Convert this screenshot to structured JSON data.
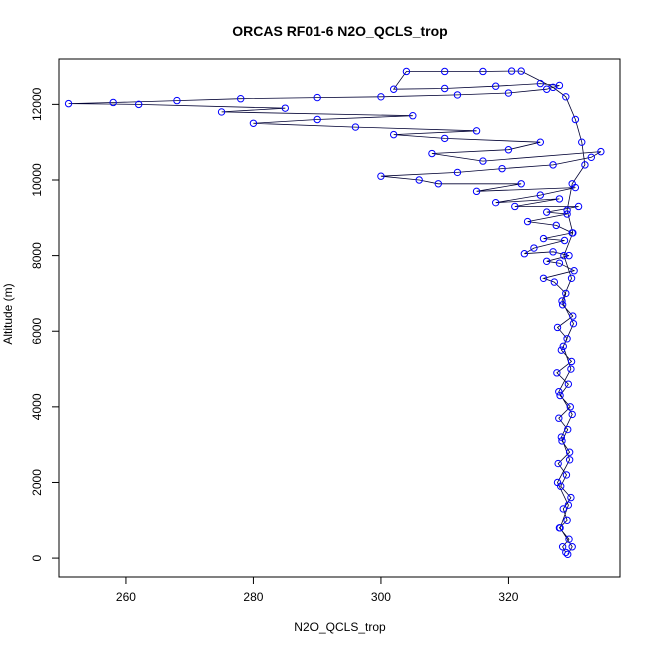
{
  "chart_data": {
    "type": "scatter",
    "title": "ORCAS RF01-6 N2O_QCLS_trop",
    "xlabel": "N2O_QCLS_trop",
    "ylabel": "Altitude (m)",
    "xlim": [
      249.5,
      337.5
    ],
    "ylim": [
      -500,
      13200
    ],
    "x_ticks": [
      260,
      280,
      300,
      320
    ],
    "x_tick_labels": [
      "260",
      "280",
      "300",
      "320"
    ],
    "y_ticks": [
      0,
      2000,
      4000,
      6000,
      8000,
      10000,
      12000
    ],
    "y_tick_labels": [
      "0",
      "2000",
      "4000",
      "6000",
      "8000",
      "10000",
      "12000"
    ],
    "marker": "open-circle",
    "connected": true,
    "color": "#0000ff",
    "series": [
      {
        "points": [
          [
            329,
            150
          ],
          [
            328.5,
            300
          ],
          [
            329.5,
            500
          ],
          [
            328,
            800
          ],
          [
            329.2,
            1000
          ],
          [
            328.6,
            1300
          ],
          [
            329.8,
            1600
          ],
          [
            328.2,
            1900
          ],
          [
            329.1,
            2200
          ],
          [
            327.8,
            2500
          ],
          [
            329.6,
            2800
          ],
          [
            328.4,
            3100
          ],
          [
            329.3,
            3400
          ],
          [
            327.9,
            3700
          ],
          [
            329.7,
            4000
          ],
          [
            328.1,
            4300
          ],
          [
            329.4,
            4600
          ],
          [
            327.6,
            4900
          ],
          [
            329.9,
            5200
          ],
          [
            328.3,
            5500
          ],
          [
            329.2,
            5800
          ],
          [
            327.7,
            6100
          ],
          [
            330.1,
            6400
          ],
          [
            328.5,
            6700
          ],
          [
            329.0,
            7000
          ],
          [
            327.2,
            7300
          ],
          [
            325.5,
            7400
          ],
          [
            330.3,
            7600
          ],
          [
            328.0,
            7800
          ],
          [
            326.0,
            7850
          ],
          [
            329.5,
            8000
          ],
          [
            327.0,
            8100
          ],
          [
            322.5,
            8050
          ],
          [
            324.0,
            8200
          ],
          [
            328.8,
            8400
          ],
          [
            325.5,
            8450
          ],
          [
            330.0,
            8600
          ],
          [
            327.5,
            8800
          ],
          [
            323.0,
            8900
          ],
          [
            329.2,
            9100
          ],
          [
            326.0,
            9150
          ],
          [
            331.0,
            9300
          ],
          [
            321.0,
            9300
          ],
          [
            328.0,
            9500
          ],
          [
            318.0,
            9400
          ],
          [
            325.0,
            9600
          ],
          [
            330.5,
            9800
          ],
          [
            315.0,
            9700
          ],
          [
            322.0,
            9900
          ],
          [
            309.0,
            9900
          ],
          [
            306.0,
            10000
          ],
          [
            300.0,
            10100
          ],
          [
            312.0,
            10200
          ],
          [
            319.0,
            10300
          ],
          [
            327.0,
            10400
          ],
          [
            333.0,
            10600
          ],
          [
            334.5,
            10750
          ],
          [
            316.0,
            10500
          ],
          [
            308.0,
            10700
          ],
          [
            320.0,
            10800
          ],
          [
            325.0,
            11000
          ],
          [
            310.0,
            11100
          ],
          [
            302.0,
            11200
          ],
          [
            315.0,
            11300
          ],
          [
            296.0,
            11400
          ],
          [
            280.0,
            11500
          ],
          [
            290.0,
            11600
          ],
          [
            305.0,
            11700
          ],
          [
            275.0,
            11800
          ],
          [
            285.0,
            11900
          ],
          [
            262.0,
            12000
          ],
          [
            251.0,
            12020
          ],
          [
            258.0,
            12050
          ],
          [
            268.0,
            12100
          ],
          [
            278.0,
            12150
          ],
          [
            290.0,
            12180
          ],
          [
            300.0,
            12200
          ],
          [
            312.0,
            12250
          ],
          [
            320.0,
            12300
          ],
          [
            326.0,
            12400
          ],
          [
            328.0,
            12500
          ],
          [
            325.0,
            12550
          ],
          [
            318.0,
            12480
          ],
          [
            310.0,
            12420
          ],
          [
            302.0,
            12400
          ],
          [
            304.0,
            12870
          ],
          [
            310.0,
            12870
          ],
          [
            316.0,
            12870
          ],
          [
            320.5,
            12880
          ],
          [
            322.0,
            12880
          ],
          [
            327.0,
            12450
          ],
          [
            329.0,
            12200
          ],
          [
            330.5,
            11600
          ],
          [
            331.5,
            11000
          ],
          [
            332.0,
            10400
          ],
          [
            330.0,
            9900
          ],
          [
            329.2,
            9200
          ],
          [
            330.1,
            8600
          ],
          [
            328.7,
            8000
          ],
          [
            329.9,
            7400
          ],
          [
            328.4,
            6800
          ],
          [
            330.2,
            6200
          ],
          [
            328.6,
            5600
          ],
          [
            329.8,
            5000
          ],
          [
            327.9,
            4400
          ],
          [
            330.0,
            3800
          ],
          [
            328.3,
            3200
          ],
          [
            329.6,
            2600
          ],
          [
            327.7,
            2000
          ],
          [
            329.4,
            1400
          ],
          [
            328.1,
            800
          ],
          [
            330.0,
            300
          ],
          [
            329.3,
            100
          ]
        ]
      }
    ]
  }
}
